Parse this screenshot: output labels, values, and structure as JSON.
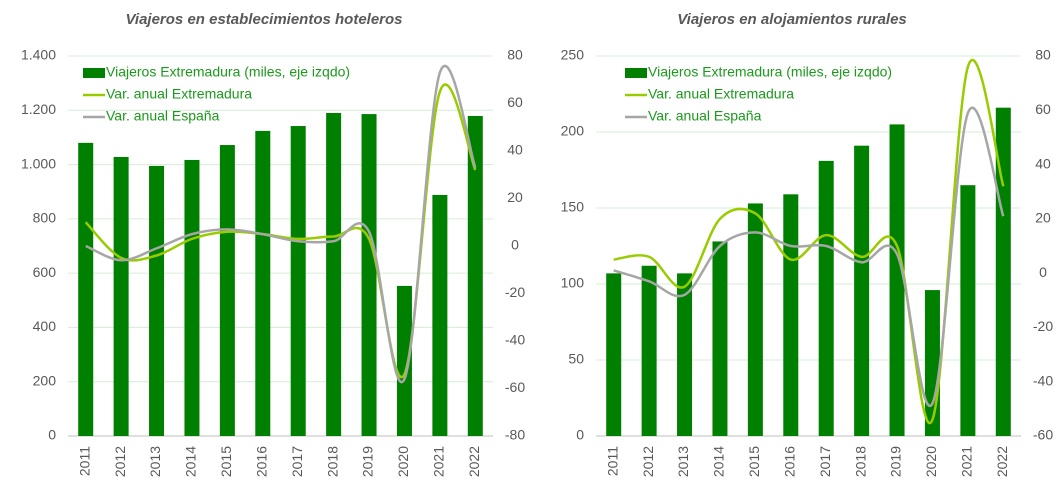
{
  "chart_data": [
    {
      "type": "bar-line",
      "title": "Viajeros en establecimientos hoteleros",
      "categories": [
        "2011",
        "2012",
        "2013",
        "2014",
        "2015",
        "2016",
        "2017",
        "2018",
        "2019",
        "2020",
        "2021",
        "2022"
      ],
      "series": [
        {
          "name": "Viajeros Extremadura (miles, eje izqdo)",
          "color": "#008000",
          "type": "bar",
          "values": [
            1080,
            1028,
            995,
            1017,
            1072,
            1124,
            1142,
            1190,
            1186,
            553,
            888,
            1179
          ]
        },
        {
          "name": "Var. anual Extremadura",
          "color": "#99cc00",
          "type": "line",
          "axis": "y2",
          "values": [
            10,
            -5,
            -4,
            3,
            6,
            5,
            3,
            4,
            3,
            -54,
            65,
            32
          ]
        },
        {
          "name": "Var. anual España",
          "color": "#a6a6a6",
          "type": "line",
          "axis": "y2",
          "values": [
            0,
            -6,
            -1,
            5,
            7,
            5,
            2,
            2,
            6,
            -56,
            73,
            33
          ]
        }
      ],
      "ylim": [
        0,
        1400
      ],
      "yticks": [
        0,
        200,
        400,
        600,
        800,
        {
          "value": 1000,
          "label": "1.000"
        },
        {
          "value": 1200,
          "label": "1.200"
        },
        {
          "value": 1400,
          "label": "1.400"
        }
      ],
      "y2lim": [
        -80,
        80
      ],
      "y2ticks": [
        -80,
        -60,
        -40,
        -20,
        0,
        20,
        40,
        60,
        80
      ],
      "grid": true
    },
    {
      "type": "bar-line",
      "title": "Viajeros en alojamientos rurales",
      "categories": [
        "2011",
        "2012",
        "2013",
        "2014",
        "2015",
        "2016",
        "2017",
        "2018",
        "2019",
        "2020",
        "2021",
        "2022"
      ],
      "series": [
        {
          "name": "Viajeros Extremadura (miles, eje izqdo)",
          "color": "#008000",
          "type": "bar",
          "values": [
            107,
            112,
            107,
            128,
            153,
            159,
            181,
            191,
            205,
            96,
            165,
            216
          ]
        },
        {
          "name": "Var. anual Extremadura",
          "color": "#99cc00",
          "type": "line",
          "axis": "y2",
          "values": [
            5,
            6,
            -5,
            20,
            22,
            5,
            14,
            6,
            10,
            -54,
            76,
            32
          ]
        },
        {
          "name": "Var. anual España",
          "color": "#a6a6a6",
          "type": "line",
          "axis": "y2",
          "values": [
            1,
            -3,
            -8,
            10,
            15,
            10,
            10,
            4,
            7,
            -48,
            59,
            21
          ]
        }
      ],
      "ylim": [
        0,
        250
      ],
      "yticks": [
        0,
        50,
        100,
        150,
        200,
        250
      ],
      "y2lim": [
        -60,
        80
      ],
      "y2ticks": [
        -60,
        -40,
        -20,
        0,
        20,
        40,
        60,
        80
      ],
      "grid": true
    }
  ]
}
